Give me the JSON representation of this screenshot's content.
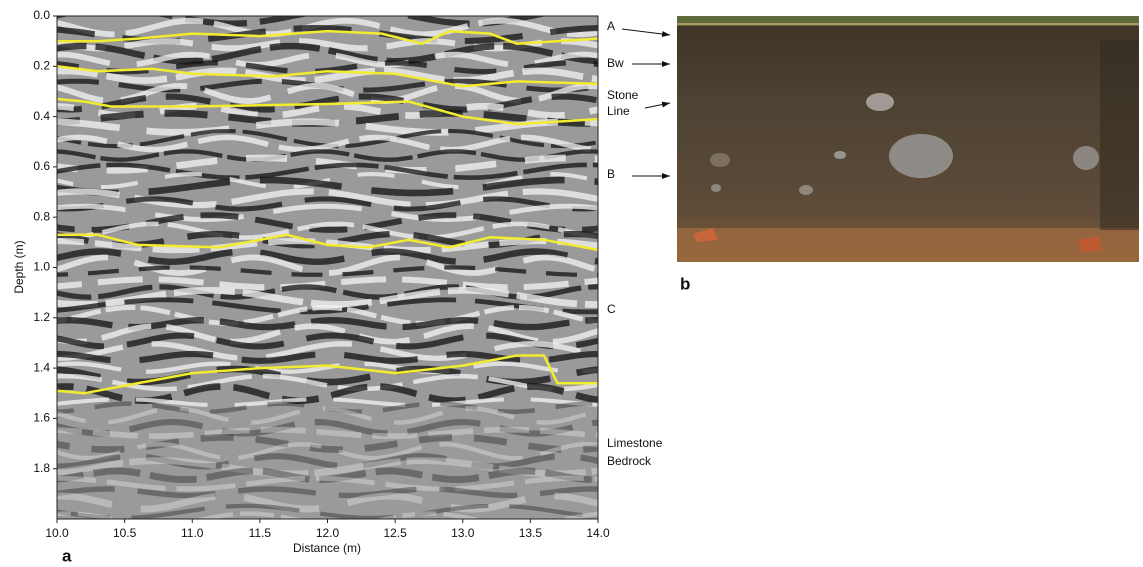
{
  "chart_data": {
    "type": "line",
    "x_label": "Distance (m)",
    "y_label": "Depth (m)",
    "xlim": [
      10,
      14
    ],
    "ylim": [
      0,
      2
    ],
    "y_inverted": true,
    "xticks": [
      {
        "value": 10,
        "label": "10.0"
      },
      10.5,
      {
        "value": 11,
        "label": "11.0"
      },
      11.5,
      {
        "value": 12,
        "label": "12.0"
      },
      12.5,
      {
        "value": 13,
        "label": "13.0"
      },
      13.5,
      {
        "value": 14,
        "label": "14.0"
      }
    ],
    "yticks": [
      {
        "value": 0,
        "label": "0.0"
      },
      0.2,
      0.4,
      0.6,
      0.8,
      {
        "value": 1,
        "label": "1.0"
      },
      1.2,
      1.4,
      1.6,
      1.8
    ],
    "series": [
      {
        "color": "#f2ec2e",
        "x": [
          10.0,
          10.3,
          10.6,
          11.0,
          11.5,
          12.0,
          12.4,
          12.7,
          12.9,
          13.2,
          13.4,
          14.0
        ],
        "values": [
          0.1,
          0.1,
          0.09,
          0.07,
          0.08,
          0.06,
          0.07,
          0.11,
          0.06,
          0.07,
          0.11,
          0.09
        ]
      },
      {
        "color": "#f2ec2e",
        "x": [
          10.0,
          10.3,
          10.7,
          11.0,
          11.6,
          12.0,
          12.5,
          13.0,
          13.4,
          14.0
        ],
        "values": [
          0.2,
          0.22,
          0.21,
          0.23,
          0.24,
          0.22,
          0.23,
          0.28,
          0.26,
          0.27
        ]
      },
      {
        "color": "#f2ec2e",
        "x": [
          10.0,
          10.2,
          10.4,
          11.0,
          12.0,
          12.6,
          13.0,
          13.4,
          14.0
        ],
        "values": [
          0.33,
          0.34,
          0.36,
          0.36,
          0.35,
          0.34,
          0.4,
          0.43,
          0.41
        ]
      },
      {
        "color": "#f2ec2e",
        "x": [
          10.0,
          10.3,
          10.6,
          11.2,
          11.7,
          12.0,
          12.3,
          12.6,
          12.9,
          13.2,
          13.6,
          14.0
        ],
        "values": [
          0.87,
          0.87,
          0.91,
          0.92,
          0.87,
          0.91,
          0.92,
          0.89,
          0.92,
          0.88,
          0.89,
          0.93
        ]
      },
      {
        "color": "#f2ec2e",
        "x": [
          10.0,
          10.2,
          10.5,
          11.0,
          11.5,
          12.0,
          12.5,
          13.0,
          13.4,
          13.6,
          13.7,
          14.0
        ],
        "values": [
          1.49,
          1.5,
          1.47,
          1.42,
          1.4,
          1.39,
          1.42,
          1.39,
          1.35,
          1.35,
          1.46,
          1.46
        ]
      }
    ],
    "layer_labels": [
      [
        "A"
      ],
      [
        "Bw"
      ],
      [
        "Stone",
        "Line"
      ],
      [
        "B"
      ],
      [
        "C"
      ],
      [
        "Limestone",
        "Bedrock"
      ]
    ],
    "panel_labels": [
      "a",
      "b"
    ]
  }
}
